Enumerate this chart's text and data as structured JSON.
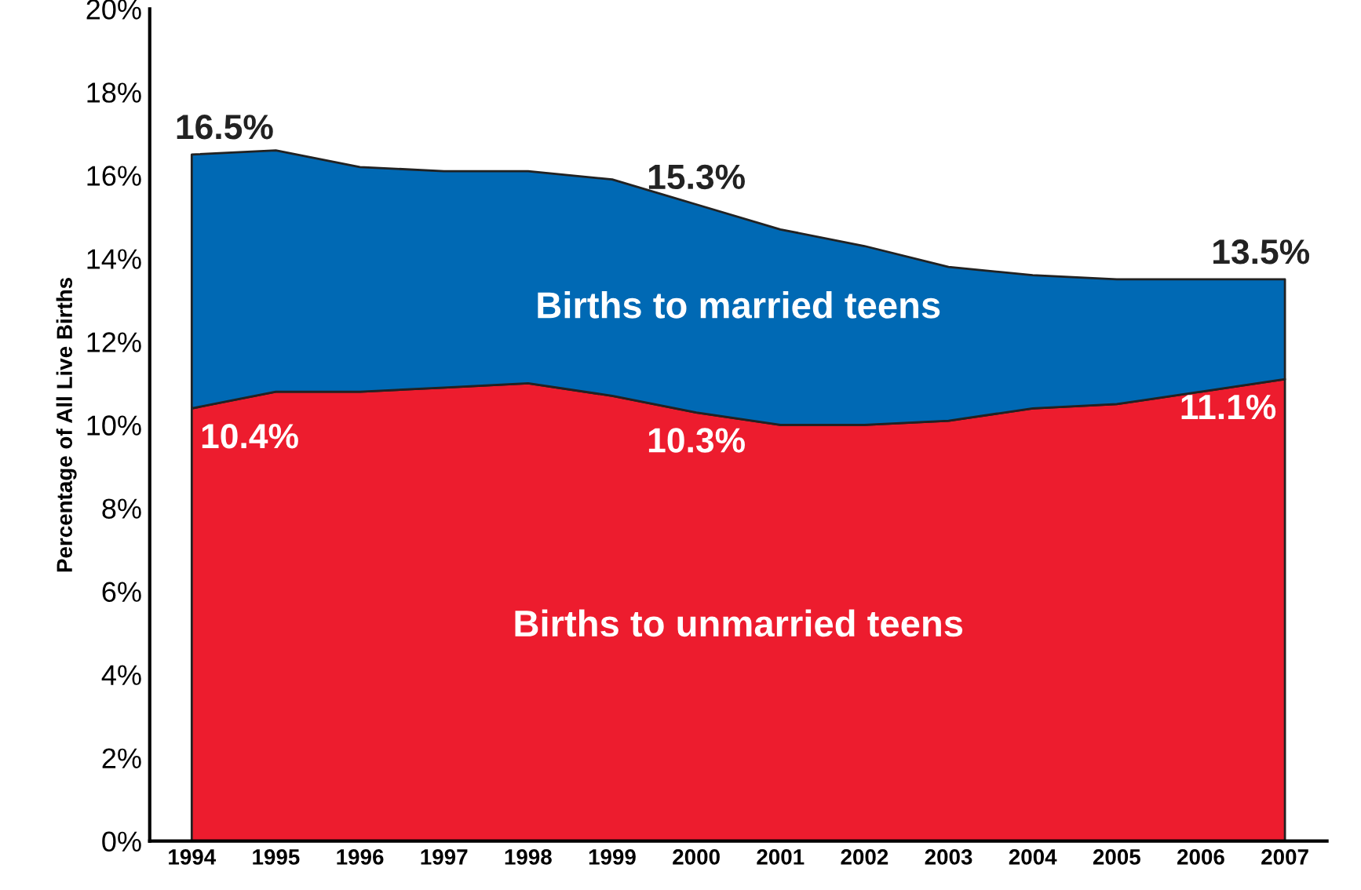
{
  "chart_data": {
    "type": "area",
    "stacked": true,
    "ylabel": "Percentage of All Live Births",
    "categories": [
      "1994",
      "1995",
      "1996",
      "1997",
      "1998",
      "1999",
      "2000",
      "2001",
      "2002",
      "2003",
      "2004",
      "2005",
      "2006",
      "2007"
    ],
    "series": [
      {
        "name": "Births to unmarried teens",
        "color": "#ed1c2e",
        "values": [
          10.4,
          10.8,
          10.8,
          10.9,
          11.0,
          10.7,
          10.3,
          10.0,
          10.0,
          10.1,
          10.4,
          10.5,
          10.8,
          11.1
        ],
        "value_labels": [
          "10.4%",
          null,
          null,
          null,
          null,
          null,
          "10.3%",
          null,
          null,
          null,
          null,
          null,
          null,
          "11.1%"
        ]
      },
      {
        "name": "Births to married teens",
        "color": "#0069b4",
        "values": [
          6.1,
          5.8,
          5.4,
          5.2,
          5.1,
          5.2,
          5.0,
          4.7,
          4.3,
          3.7,
          3.2,
          3.0,
          2.7,
          2.4
        ]
      }
    ],
    "totals": [
      "16.5%",
      null,
      null,
      null,
      null,
      null,
      "15.3%",
      null,
      null,
      null,
      null,
      null,
      null,
      "13.5%"
    ],
    "ylim": [
      0,
      20
    ],
    "yticks": [
      {
        "value": 0,
        "label": "0%"
      },
      {
        "value": 2,
        "label": "2%"
      },
      {
        "value": 4,
        "label": "4%"
      },
      {
        "value": 6,
        "label": "6%"
      },
      {
        "value": 8,
        "label": "8%"
      },
      {
        "value": 10,
        "label": "10%"
      },
      {
        "value": 12,
        "label": "12%"
      },
      {
        "value": 14,
        "label": "14%"
      },
      {
        "value": 16,
        "label": "16%"
      },
      {
        "value": 18,
        "label": "18%"
      },
      {
        "value": 20,
        "label": "20%"
      }
    ],
    "grid": false,
    "legend": false
  }
}
